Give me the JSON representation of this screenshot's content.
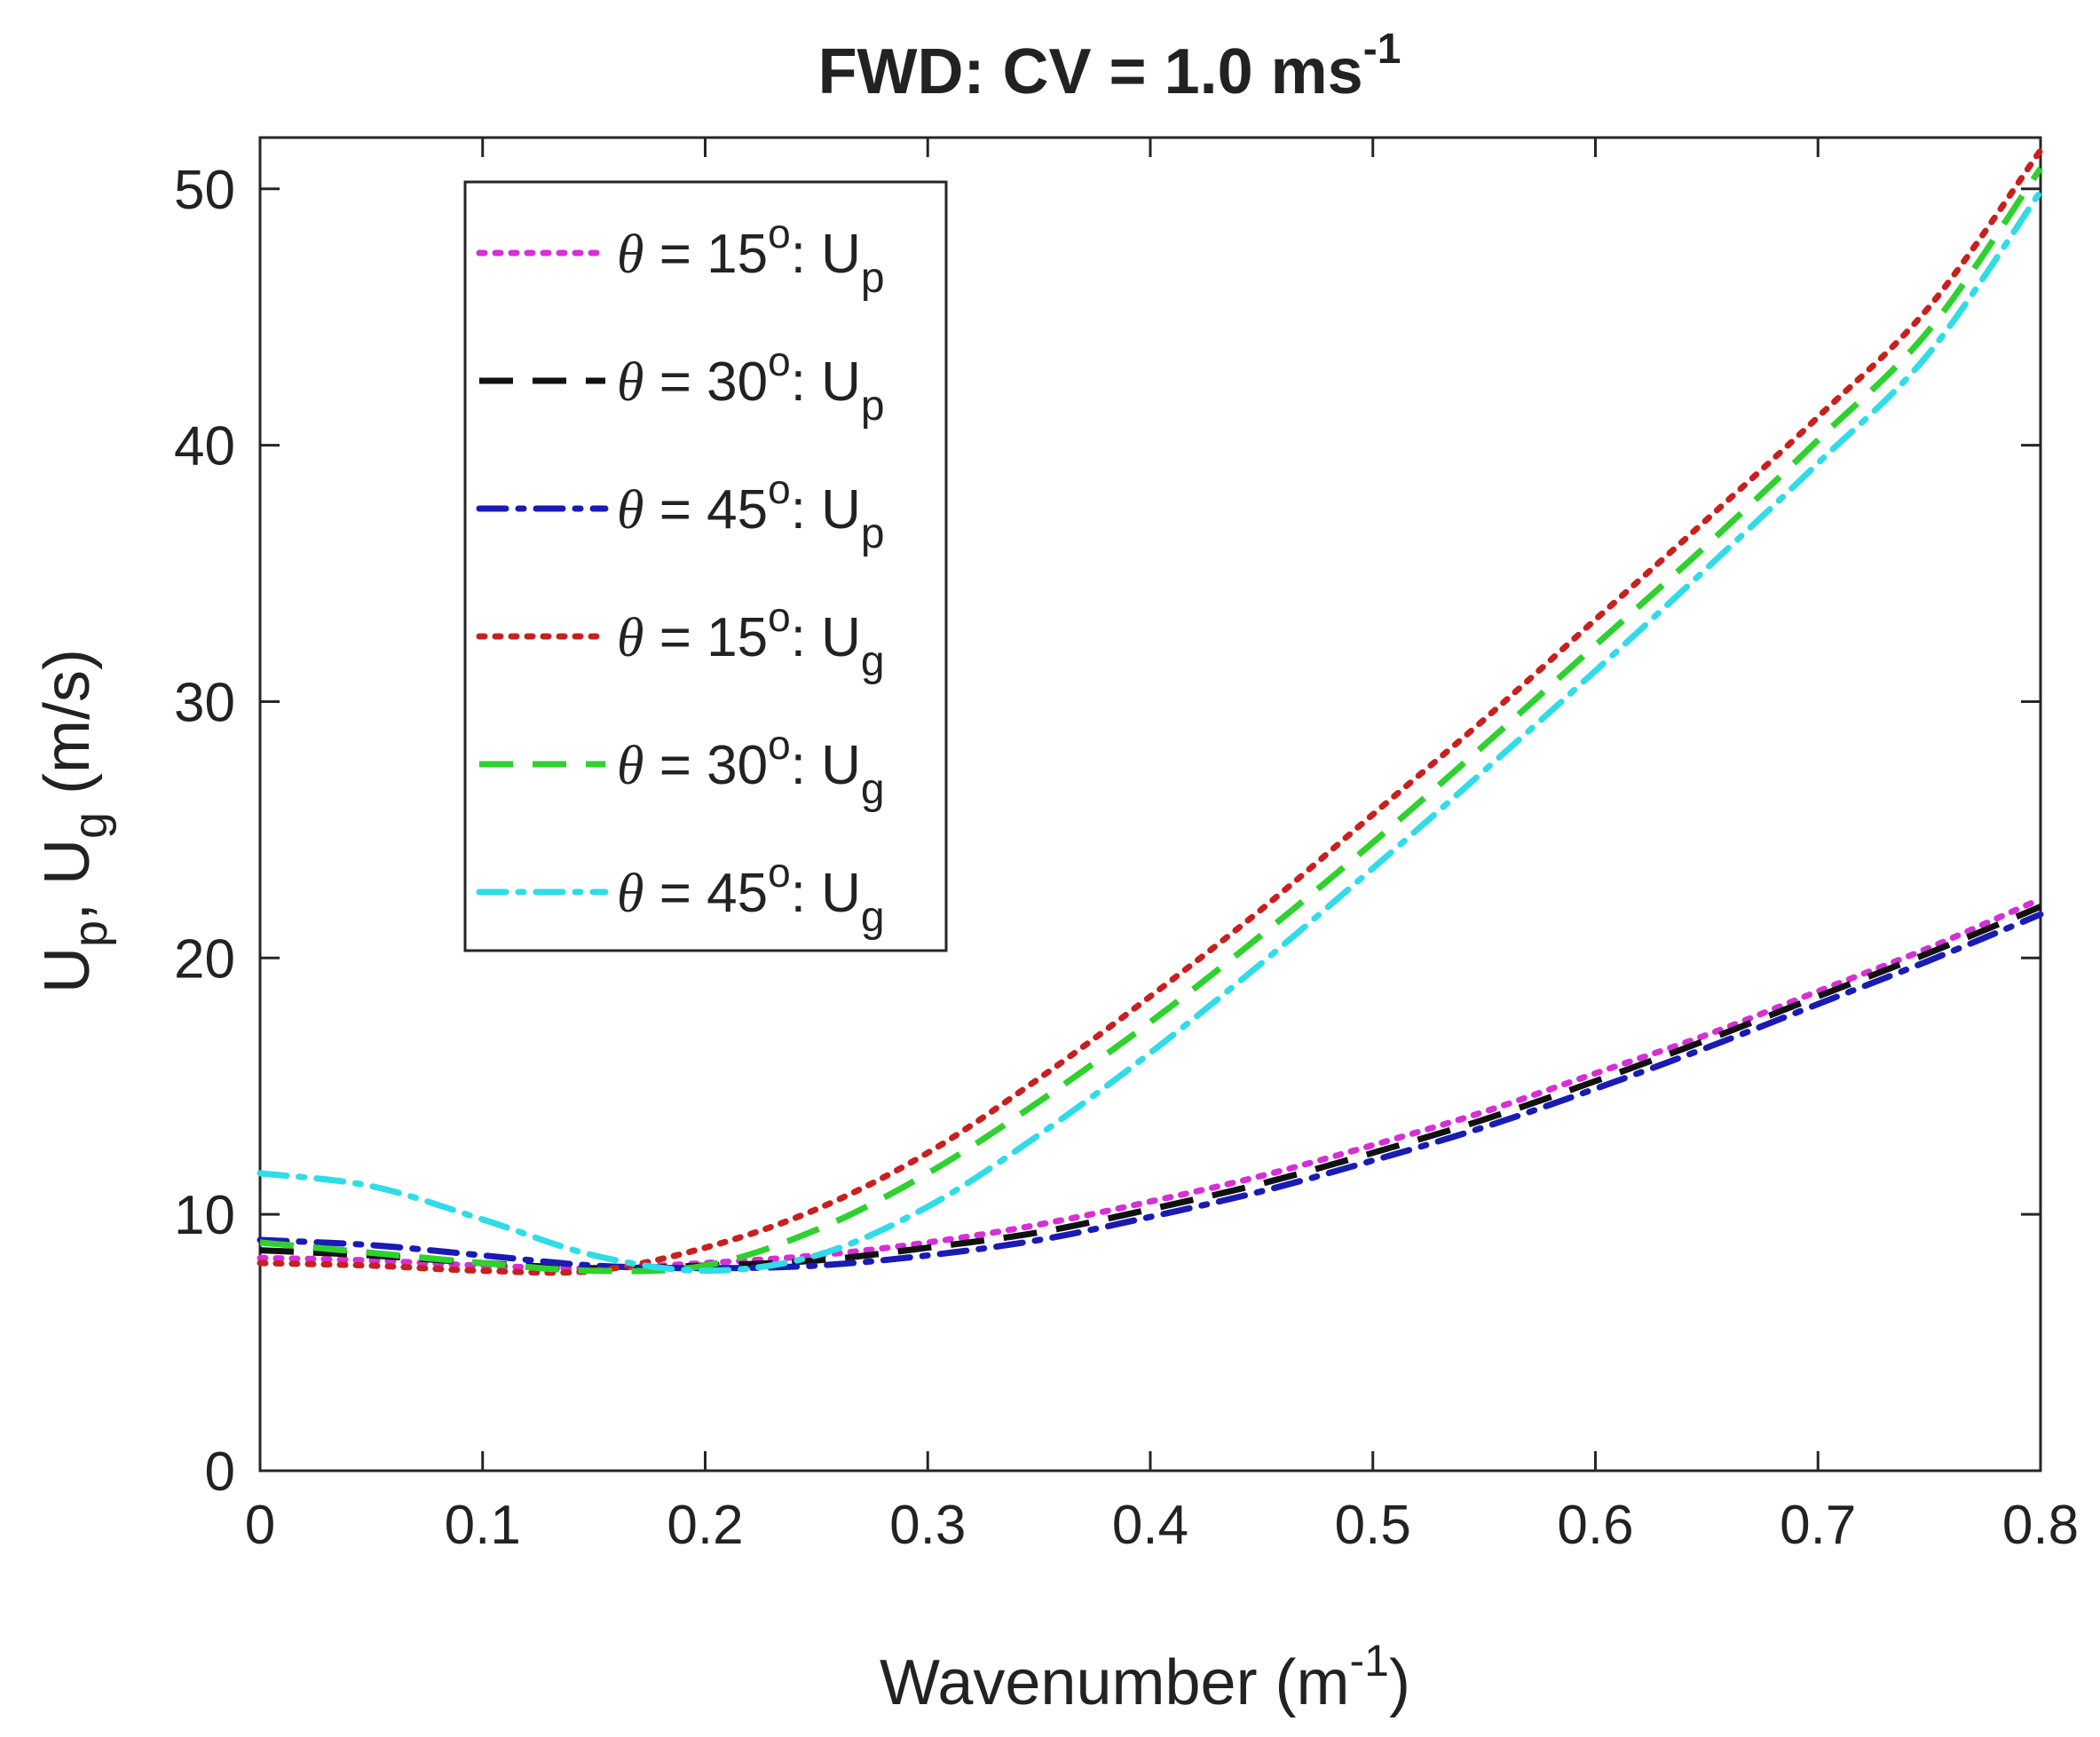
{
  "chart_data": {
    "type": "line",
    "title": {
      "main": "FWD: CV = 1.0 ms",
      "sup": "-1"
    },
    "xlabel": {
      "main": "Wavenumber (m",
      "sup": "-1",
      "end": ")"
    },
    "ylabel": {
      "p1": "U",
      "s1": "p",
      "p2": ", U",
      "s2": "g",
      "p3": " (m/s)"
    },
    "xlim": [
      0,
      0.8
    ],
    "ylim": [
      0,
      52
    ],
    "xticks": [
      0,
      0.1,
      0.2,
      0.3,
      0.4,
      0.5,
      0.6,
      0.7,
      0.8
    ],
    "xtick_labels": [
      "0",
      "0.1",
      "0.2",
      "0.3",
      "0.4",
      "0.5",
      "0.6",
      "0.7",
      "0.8"
    ],
    "yticks": [
      0,
      10,
      20,
      30,
      40,
      50
    ],
    "ytick_labels": [
      "0",
      "10",
      "20",
      "30",
      "40",
      "50"
    ],
    "grid": false,
    "legend_position": "top-left",
    "x": [
      0,
      0.05,
      0.1,
      0.15,
      0.2,
      0.25,
      0.3,
      0.35,
      0.4,
      0.45,
      0.5,
      0.55,
      0.6,
      0.65,
      0.7,
      0.75,
      0.8
    ],
    "series": [
      {
        "name": "theta15_Up",
        "legend": {
          "sym": "θ",
          "eq": " = 15",
          "deg": "o",
          "colon": ": U",
          "sub": "p"
        },
        "color": "#d62fd6",
        "dash": "dotted",
        "values": [
          8.3,
          8.2,
          8.0,
          7.9,
          8.1,
          8.4,
          8.9,
          9.6,
          10.5,
          11.5,
          12.7,
          14.0,
          15.5,
          17.0,
          18.7,
          20.4,
          22.3
        ]
      },
      {
        "name": "theta30_Up",
        "legend": {
          "sym": "θ",
          "eq": " = 30",
          "deg": "o",
          "colon": ": U",
          "sub": "p"
        },
        "color": "#111111",
        "dash": "dashed",
        "values": [
          8.6,
          8.4,
          8.1,
          7.9,
          8.0,
          8.2,
          8.7,
          9.3,
          10.2,
          11.2,
          12.4,
          13.7,
          15.2,
          16.8,
          18.5,
          20.2,
          22.0
        ]
      },
      {
        "name": "theta45_Up",
        "legend": {
          "sym": "θ",
          "eq": " = 45",
          "deg": "o",
          "colon": ": U",
          "sub": "p"
        },
        "color": "#1a1ab4",
        "dash": "dashdot",
        "values": [
          9.0,
          8.8,
          8.4,
          8.0,
          7.9,
          8.0,
          8.4,
          9.0,
          9.9,
          10.9,
          12.1,
          13.4,
          14.9,
          16.5,
          18.2,
          19.9,
          21.7
        ]
      },
      {
        "name": "theta15_Ug",
        "legend": {
          "sym": "θ",
          "eq": " = 15",
          "deg": "o",
          "colon": ": U",
          "sub": "g"
        },
        "color": "#c8201e",
        "dash": "dotted",
        "values": [
          8.1,
          8.0,
          7.8,
          7.8,
          8.7,
          10.2,
          12.4,
          15.3,
          18.5,
          21.9,
          25.6,
          29.3,
          33.2,
          37.1,
          41.1,
          45.4,
          51.5
        ]
      },
      {
        "name": "theta30_Ug",
        "legend": {
          "sym": "θ",
          "eq": " = 30",
          "deg": "o",
          "colon": ": U",
          "sub": "g"
        },
        "color": "#2ed12e",
        "dash": "dashed",
        "values": [
          8.9,
          8.5,
          8.1,
          7.8,
          8.0,
          9.4,
          11.6,
          14.4,
          17.5,
          20.9,
          24.5,
          28.3,
          32.2,
          36.1,
          40.2,
          44.5,
          50.8
        ]
      },
      {
        "name": "theta45_Ug",
        "legend": {
          "sym": "θ",
          "eq": " = 45",
          "deg": "o",
          "colon": ": U",
          "sub": "g"
        },
        "color": "#2fdce8",
        "dash": "dashdot",
        "values": [
          11.6,
          11.1,
          9.8,
          8.4,
          7.8,
          8.4,
          10.3,
          13.1,
          16.3,
          19.8,
          23.5,
          27.3,
          31.2,
          35.2,
          39.3,
          43.6,
          49.9
        ]
      }
    ]
  }
}
